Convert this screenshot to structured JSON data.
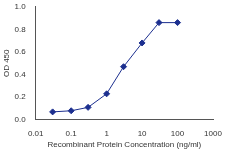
{
  "chart_data": {
    "type": "line",
    "x_label": "Recombinant Protein Concentration (ng/ml)",
    "y_label": "OD 450",
    "x": [
      0.03,
      0.1,
      0.3,
      1,
      3,
      10,
      30,
      100
    ],
    "values": [
      0.07,
      0.08,
      0.11,
      0.23,
      0.47,
      0.68,
      0.86,
      0.86
    ],
    "color": "#1c2f8f",
    "marker": "diamond",
    "line_style": "solid",
    "log": "x",
    "grid": false,
    "xlim": [
      0.01,
      1000
    ],
    "xticks": [
      0.01,
      0.1,
      1,
      10,
      100,
      1000
    ],
    "ylim": [
      0,
      1
    ],
    "yticks": [
      {
        "value": 0,
        "label": "0.0"
      },
      0.2,
      0.4,
      0.6,
      0.8,
      {
        "value": 1,
        "label": "1.0"
      }
    ]
  }
}
